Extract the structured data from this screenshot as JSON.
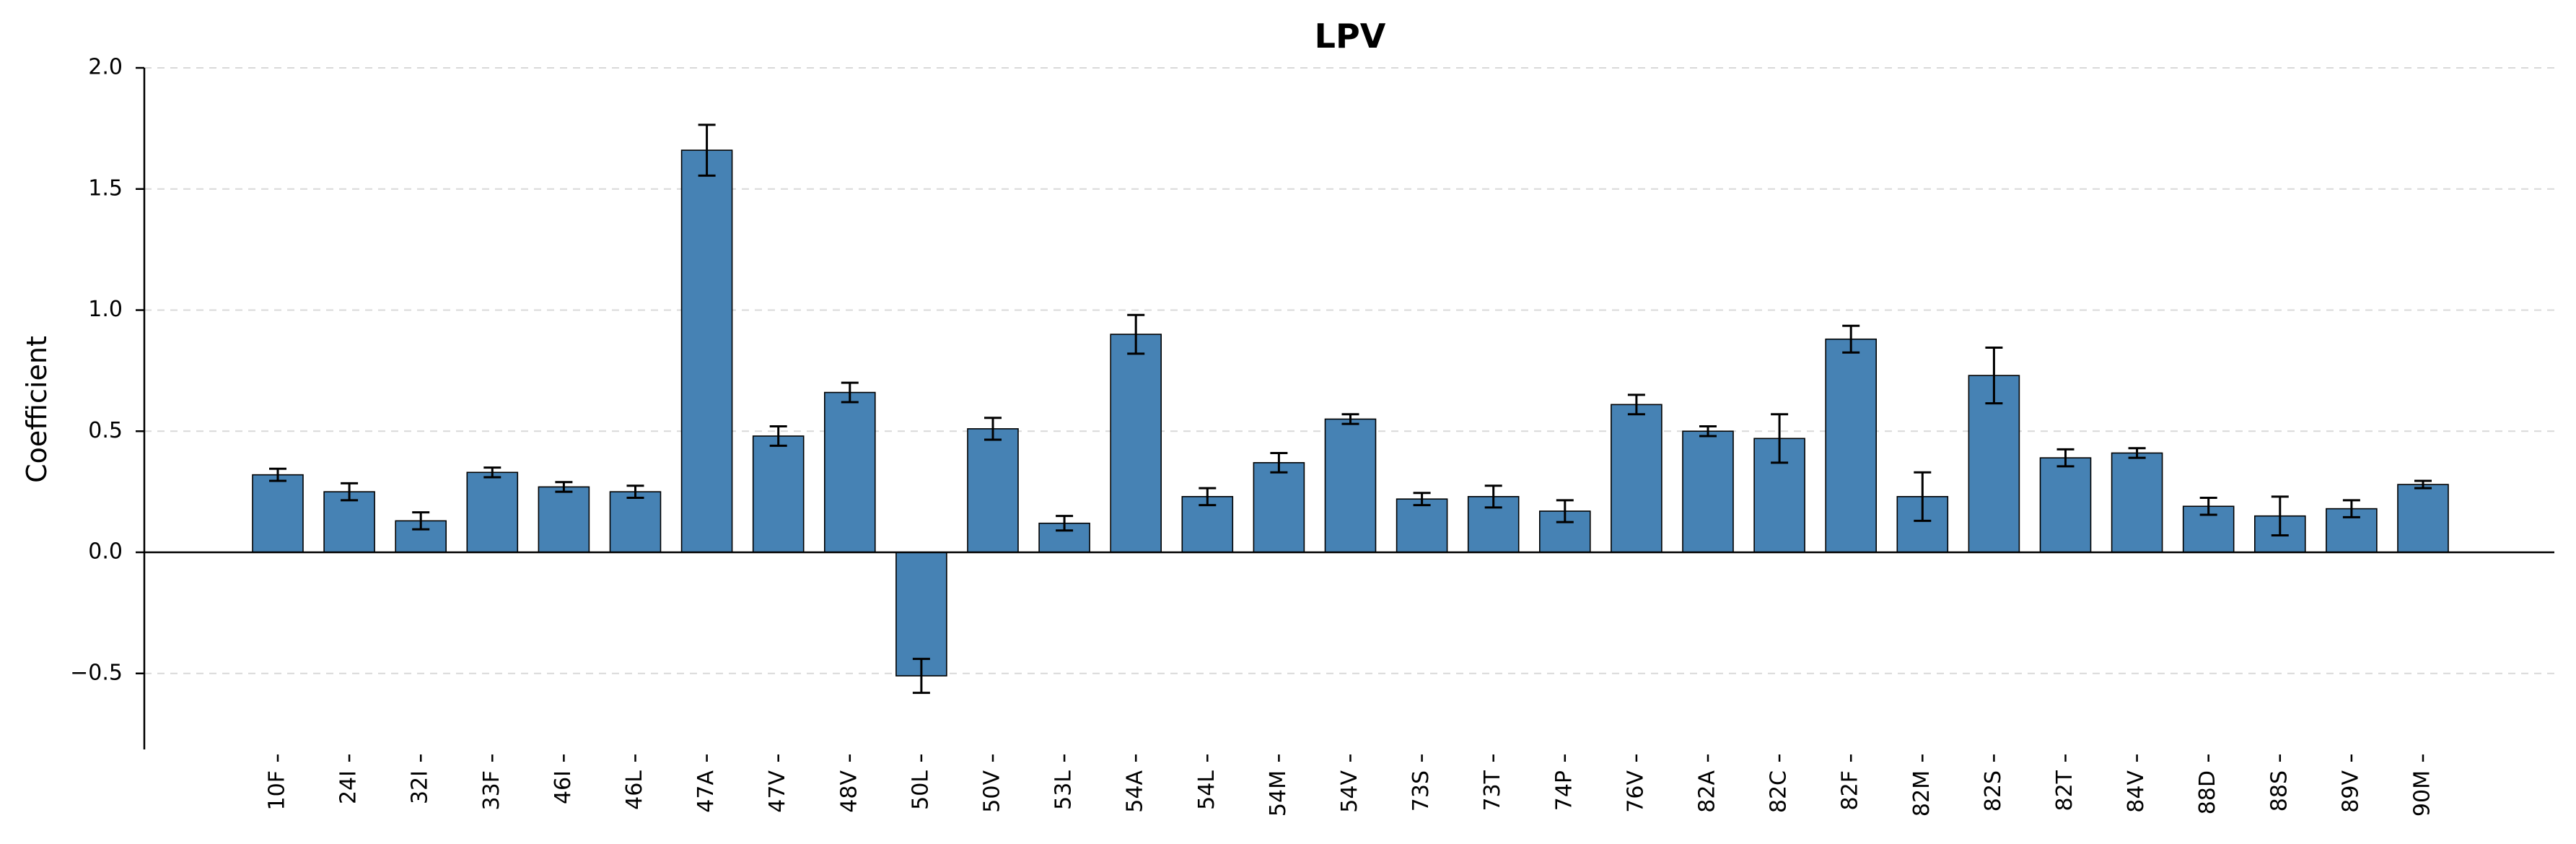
{
  "chart_data": {
    "type": "bar",
    "title": "LPV",
    "xlabel": "",
    "ylabel": "Coefficient",
    "ylim": [
      -0.8,
      2.0
    ],
    "yticks": [
      {
        "value": -0.5,
        "label": "−0.5"
      },
      {
        "value": 0.0,
        "label": "0.0"
      },
      {
        "value": 0.5,
        "label": "0.5"
      },
      {
        "value": 1.0,
        "label": "1.0"
      },
      {
        "value": 1.5,
        "label": "1.5"
      },
      {
        "value": 2.0,
        "label": "2.0"
      }
    ],
    "grid": "y",
    "colors": {
      "bar": "#4682b4",
      "edge": "#000000",
      "grid": "#d9d9d9"
    },
    "categories": [
      "10F",
      "24I",
      "32I",
      "33F",
      "46I",
      "46L",
      "47A",
      "47V",
      "48V",
      "50L",
      "50V",
      "53L",
      "54A",
      "54L",
      "54M",
      "54V",
      "73S",
      "73T",
      "74P",
      "76V",
      "82A",
      "82C",
      "82F",
      "82M",
      "82S",
      "82T",
      "84V",
      "88D",
      "88S",
      "89V",
      "90M"
    ],
    "values": [
      0.32,
      0.25,
      0.13,
      0.33,
      0.27,
      0.25,
      1.66,
      0.48,
      0.66,
      -0.51,
      0.51,
      0.12,
      0.9,
      0.23,
      0.37,
      0.55,
      0.22,
      0.23,
      0.17,
      0.61,
      0.5,
      0.47,
      0.88,
      0.23,
      0.73,
      0.39,
      0.41,
      0.19,
      0.15,
      0.18,
      0.28
    ],
    "errors": [
      0.025,
      0.035,
      0.035,
      0.02,
      0.02,
      0.025,
      0.105,
      0.04,
      0.04,
      0.07,
      0.045,
      0.03,
      0.08,
      0.035,
      0.04,
      0.02,
      0.025,
      0.045,
      0.045,
      0.04,
      0.02,
      0.1,
      0.055,
      0.1,
      0.115,
      0.035,
      0.02,
      0.035,
      0.08,
      0.035,
      0.015
    ]
  }
}
